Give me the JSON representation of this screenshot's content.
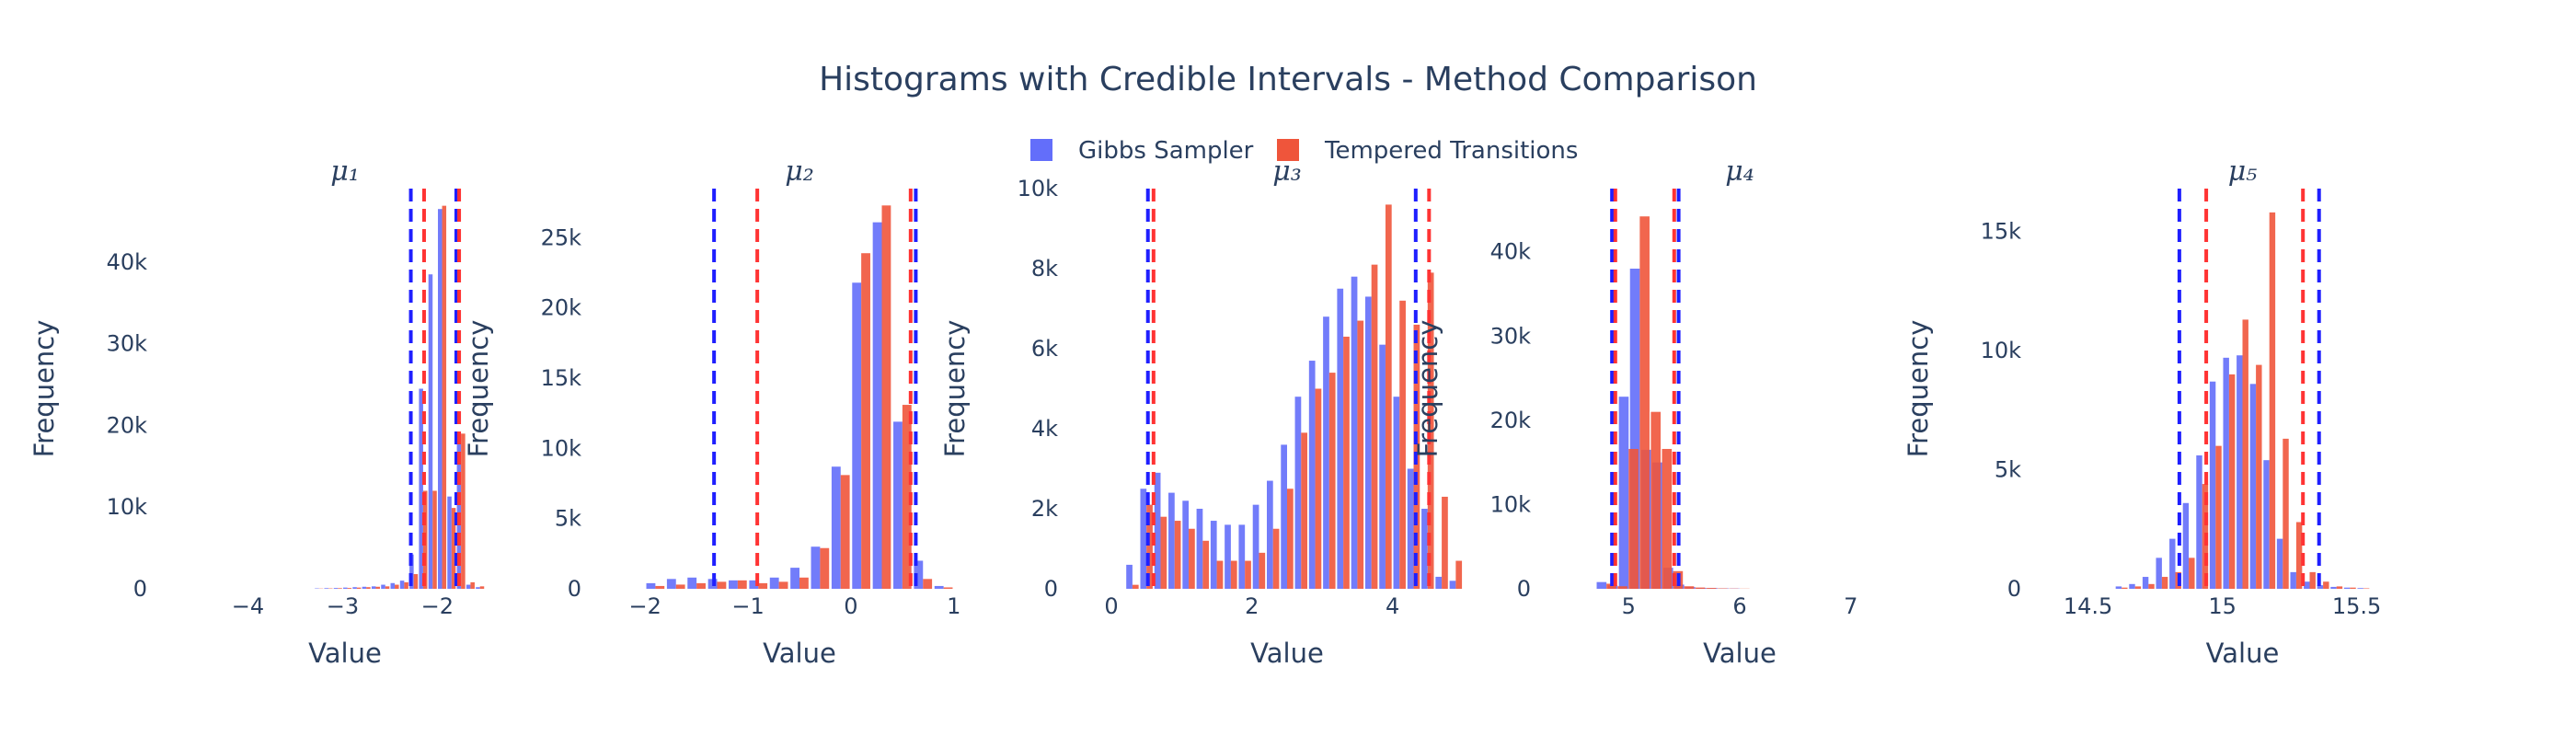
{
  "figure": {
    "title": "Histograms with Credible Intervals - Method Comparison",
    "colors": {
      "gibbs": "#636efa",
      "tempered": "#ef553b",
      "gibbs_line": "#1f1fff",
      "tempered_line": "#ff3333",
      "text": "#2a3f5f"
    }
  },
  "legend": {
    "placement": "top-center",
    "items": [
      {
        "label": "Gibbs Sampler",
        "color": "#636efa"
      },
      {
        "label": "Tempered Transitions",
        "color": "#ef553b"
      }
    ]
  },
  "chart_data": [
    {
      "type": "bar",
      "subtitle": "μ₁",
      "xlabel": "Value",
      "ylabel": "Frequency",
      "xlim": [
        -4.5,
        -1.45
      ],
      "ylim": [
        0,
        49000
      ],
      "x_ticks": [
        -4,
        -3,
        -2
      ],
      "x_tick_labels": [
        "−4",
        "−3",
        "−2"
      ],
      "y_ticks": [
        0,
        10000,
        20000,
        30000,
        40000
      ],
      "y_tick_labels": [
        "0",
        "10k",
        "20k",
        "30k",
        "40k"
      ],
      "bin_starts": [
        -3.3,
        -3.2,
        -3.1,
        -3.0,
        -2.9,
        -2.8,
        -2.7,
        -2.6,
        -2.5,
        -2.4,
        -2.3,
        -2.2,
        -2.1,
        -2.0,
        -1.9,
        -1.8,
        -1.7,
        -1.6
      ],
      "bin_width": 0.1,
      "series": [
        {
          "name": "Gibbs Sampler",
          "values": [
            50,
            80,
            100,
            150,
            200,
            250,
            300,
            500,
            700,
            1000,
            4200,
            24500,
            38500,
            46500,
            11300,
            19000,
            500,
            200
          ]
        },
        {
          "name": "Tempered Transitions",
          "values": [
            30,
            50,
            80,
            100,
            150,
            200,
            250,
            300,
            500,
            800,
            1800,
            12000,
            12000,
            46900,
            9900,
            19000,
            800,
            300
          ]
        }
      ],
      "credible_intervals": [
        {
          "name": "Gibbs Sampler",
          "lower": -2.28,
          "upper": -1.8
        },
        {
          "name": "Tempered Transitions",
          "lower": -2.14,
          "upper": -1.77
        }
      ]
    },
    {
      "type": "bar",
      "subtitle": "μ₂",
      "xlabel": "Value",
      "ylabel": "Frequency",
      "xlim": [
        -2.1,
        1.1
      ],
      "ylim": [
        0,
        28500
      ],
      "x_ticks": [
        -2,
        -1,
        0,
        1
      ],
      "x_tick_labels": [
        "−2",
        "−1",
        "0",
        "1"
      ],
      "y_ticks": [
        0,
        5000,
        10000,
        15000,
        20000,
        25000
      ],
      "y_tick_labels": [
        "0",
        "5k",
        "10k",
        "15k",
        "20k",
        "25k"
      ],
      "bin_starts": [
        -2.0,
        -1.8,
        -1.6,
        -1.4,
        -1.2,
        -1.0,
        -0.8,
        -0.6,
        -0.4,
        -0.2,
        0.0,
        0.2,
        0.4,
        0.6,
        0.8
      ],
      "bin_width": 0.2,
      "series": [
        {
          "name": "Gibbs Sampler",
          "values": [
            400,
            700,
            800,
            700,
            600,
            600,
            800,
            1500,
            3000,
            8700,
            21800,
            26100,
            11900,
            2000,
            200
          ]
        },
        {
          "name": "Tempered Transitions",
          "values": [
            200,
            300,
            400,
            500,
            600,
            400,
            500,
            800,
            2900,
            8100,
            23900,
            27300,
            13100,
            700,
            100
          ]
        }
      ],
      "credible_intervals": [
        {
          "name": "Gibbs Sampler",
          "lower": -1.33,
          "upper": 0.63
        },
        {
          "name": "Tempered Transitions",
          "lower": -0.91,
          "upper": 0.58
        }
      ]
    },
    {
      "type": "bar",
      "subtitle": "μ₃",
      "xlabel": "Value",
      "ylabel": "Frequency",
      "xlim": [
        0,
        5.0
      ],
      "ylim": [
        0,
        10000
      ],
      "x_ticks": [
        0,
        2,
        4
      ],
      "x_tick_labels": [
        "0",
        "2",
        "4"
      ],
      "y_ticks": [
        0,
        2000,
        4000,
        6000,
        8000,
        10000
      ],
      "y_tick_labels": [
        "0",
        "2k",
        "4k",
        "6k",
        "8k",
        "10k"
      ],
      "bin_starts": [
        0.2,
        0.4,
        0.6,
        0.8,
        1.0,
        1.2,
        1.4,
        1.6,
        1.8,
        2.0,
        2.2,
        2.4,
        2.6,
        2.8,
        3.0,
        3.2,
        3.4,
        3.6,
        3.8,
        4.0,
        4.2,
        4.4,
        4.6,
        4.8
      ],
      "bin_width": 0.2,
      "series": [
        {
          "name": "Gibbs Sampler",
          "values": [
            600,
            2500,
            2900,
            2400,
            2200,
            2000,
            1700,
            1600,
            1600,
            2100,
            2700,
            3600,
            4800,
            5700,
            6800,
            7500,
            7800,
            7300,
            6100,
            4800,
            3000,
            2000,
            300,
            200
          ]
        },
        {
          "name": "Tempered Transitions",
          "values": [
            100,
            2100,
            1800,
            1700,
            1500,
            1200,
            700,
            700,
            700,
            900,
            1500,
            2500,
            3900,
            5000,
            5400,
            6300,
            6700,
            8100,
            9600,
            7200,
            6600,
            7900,
            2300,
            700
          ]
        }
      ],
      "credible_intervals": [
        {
          "name": "Gibbs Sampler",
          "lower": 0.52,
          "upper": 4.33
        },
        {
          "name": "Tempered Transitions",
          "lower": 0.6,
          "upper": 4.52
        }
      ]
    },
    {
      "type": "bar",
      "subtitle": "μ₄",
      "xlabel": "Value",
      "ylabel": "Frequency",
      "xlim": [
        4.6,
        7.4
      ],
      "ylim": [
        0,
        47500
      ],
      "x_ticks": [
        5,
        6,
        7
      ],
      "x_tick_labels": [
        "5",
        "6",
        "7"
      ],
      "y_ticks": [
        0,
        10000,
        20000,
        30000,
        40000
      ],
      "y_tick_labels": [
        "0",
        "10k",
        "20k",
        "30k",
        "40k"
      ],
      "bin_starts": [
        4.7,
        4.8,
        4.9,
        5.0,
        5.1,
        5.2,
        5.3,
        5.4,
        5.5,
        5.6,
        5.7,
        5.8,
        5.9
      ],
      "bin_width": 0.2,
      "series": [
        {
          "name": "Gibbs Sampler",
          "values": [
            800,
            400,
            22800,
            38000,
            16500,
            15000,
            2500,
            500,
            200,
            100,
            80,
            50,
            30
          ]
        },
        {
          "name": "Tempered Transitions",
          "values": [
            600,
            300,
            16600,
            44200,
            21000,
            16600,
            2100,
            300,
            150,
            100,
            50,
            30,
            20
          ]
        }
      ],
      "credible_intervals": [
        {
          "name": "Gibbs Sampler",
          "lower": 4.85,
          "upper": 5.45
        },
        {
          "name": "Tempered Transitions",
          "lower": 4.88,
          "upper": 5.41
        }
      ]
    },
    {
      "type": "bar",
      "subtitle": "μ₅",
      "xlabel": "Value",
      "ylabel": "Frequency",
      "xlim": [
        14.45,
        15.7
      ],
      "ylim": [
        0,
        16800
      ],
      "x_ticks": [
        14.5,
        15,
        15.5
      ],
      "x_tick_labels": [
        "14.5",
        "15",
        "15.5"
      ],
      "y_ticks": [
        0,
        5000,
        10000,
        15000
      ],
      "y_tick_labels": [
        "0",
        "5k",
        "10k",
        "15k"
      ],
      "bin_starts": [
        14.6,
        14.65,
        14.7,
        14.75,
        14.8,
        14.85,
        14.9,
        14.95,
        15.0,
        15.05,
        15.1,
        15.15,
        15.2,
        15.25,
        15.3,
        15.35,
        15.4,
        15.45,
        15.5
      ],
      "bin_width": 0.05,
      "series": [
        {
          "name": "Gibbs Sampler",
          "values": [
            100,
            200,
            500,
            1300,
            2100,
            3600,
            5600,
            8700,
            9700,
            9800,
            8600,
            5400,
            2100,
            700,
            300,
            150,
            80,
            50,
            30
          ]
        },
        {
          "name": "Tempered Transitions",
          "values": [
            50,
            100,
            200,
            500,
            700,
            1300,
            4400,
            6000,
            9000,
            11300,
            9400,
            15800,
            6300,
            2800,
            700,
            300,
            100,
            50,
            20
          ]
        }
      ],
      "credible_intervals": [
        {
          "name": "Gibbs Sampler",
          "lower": 14.84,
          "upper": 15.36
        },
        {
          "name": "Tempered Transitions",
          "lower": 14.94,
          "upper": 15.3
        }
      ]
    }
  ],
  "axis_labels": {
    "x": "Value",
    "y": "Frequency"
  }
}
